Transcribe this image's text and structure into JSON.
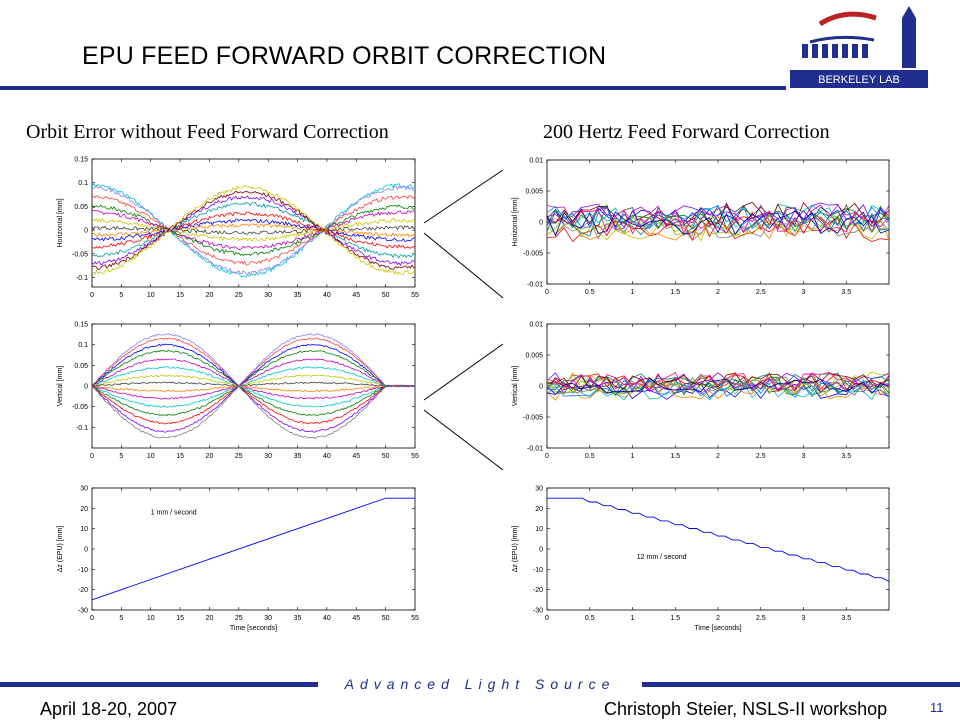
{
  "slide": {
    "title": "EPU FEED FORWARD ORBIT CORRECTION",
    "left_heading": "Orbit Error without Feed Forward Correction",
    "right_heading": "200 Hertz Feed Forward Correction",
    "footer_tagline": "Advanced Light Source",
    "footer_date": "April 18-20, 2007",
    "footer_author": "Christoph Steier, NSLS-II workshop",
    "page_number": "11",
    "logo_text": "BERKELEY LAB",
    "accent_color": "#1f2e8f"
  },
  "chart_data": [
    {
      "id": "left-horizontal",
      "type": "line",
      "xlabel": "",
      "ylabel": "Horizontal [mm]",
      "xlim": [
        0,
        55
      ],
      "ylim": [
        -0.12,
        0.15
      ],
      "xticks": [
        "0",
        "5",
        "10",
        "15",
        "20",
        "25",
        "30",
        "35",
        "40",
        "45",
        "50",
        "55"
      ],
      "yticks": [
        "-0.1",
        "-0.05",
        "0",
        "0.05",
        "0.1",
        "0.15"
      ],
      "shape": "cos_envelope",
      "amplitudes": [
        0.095,
        0.09,
        0.07,
        0.05,
        0.038,
        0.02,
        0.005,
        -0.01,
        -0.02,
        -0.035,
        -0.055,
        -0.07,
        -0.08,
        -0.09
      ],
      "colors": [
        "#00c8c8",
        "#8080ff",
        "#ff4040",
        "#008000",
        "#c000c0",
        "#c8c800",
        "#404040",
        "#ff8000",
        "#0000ff",
        "#ff0000",
        "#00a0a0",
        "#8000ff",
        "#800000",
        "#c8c800"
      ]
    },
    {
      "id": "right-horizontal",
      "type": "line",
      "xlabel": "",
      "ylabel": "Horizontal [mm]",
      "xlim": [
        0,
        4
      ],
      "ylim": [
        -0.01,
        0.01
      ],
      "xticks": [
        "0",
        "0.5",
        "1",
        "1.5",
        "2",
        "2.5",
        "3",
        "3.5"
      ],
      "yticks": [
        "-0.01",
        "-0.005",
        "0",
        "0.005",
        "0.01"
      ],
      "shape": "noise",
      "noise_amplitude": 0.0025,
      "series_count": 16
    },
    {
      "id": "left-vertical",
      "type": "line",
      "xlabel": "",
      "ylabel": "Vertical [mm]",
      "xlim": [
        0,
        55
      ],
      "ylim": [
        -0.15,
        0.15
      ],
      "xticks": [
        "0",
        "5",
        "10",
        "15",
        "20",
        "25",
        "30",
        "35",
        "40",
        "45",
        "50",
        "55"
      ],
      "yticks": [
        "-0.1",
        "-0.05",
        "0",
        "0.05",
        "0.1",
        "0.15"
      ],
      "shape": "sin_lobes",
      "amplitudes": [
        0.125,
        0.115,
        0.1,
        0.085,
        0.065,
        0.045,
        0.025,
        0.008,
        -0.012,
        -0.03,
        -0.05,
        -0.07,
        -0.09,
        -0.11,
        -0.125
      ],
      "colors": [
        "#8080ff",
        "#ff4040",
        "#0000ff",
        "#008000",
        "#c000c0",
        "#00c8c8",
        "#c8c800",
        "#404040",
        "#ff8000",
        "#c000c0",
        "#00c8c8",
        "#008000",
        "#ff0000",
        "#8000ff",
        "#808080"
      ]
    },
    {
      "id": "right-vertical",
      "type": "line",
      "xlabel": "",
      "ylabel": "Vertical [mm]",
      "xlim": [
        0,
        4
      ],
      "ylim": [
        -0.01,
        0.01
      ],
      "xticks": [
        "0",
        "0.5",
        "1",
        "1.5",
        "2",
        "2.5",
        "3",
        "3.5"
      ],
      "yticks": [
        "-0.01",
        "-0.005",
        "0",
        "0.005",
        "0.01"
      ],
      "shape": "noise",
      "noise_amplitude": 0.0018,
      "series_count": 16
    },
    {
      "id": "left-epu",
      "type": "line",
      "xlabel": "Time [seconds]",
      "ylabel": "Δz (EPU) [mm]",
      "xlim": [
        0,
        55
      ],
      "ylim": [
        -30,
        30
      ],
      "xticks": [
        "0",
        "5",
        "10",
        "15",
        "20",
        "25",
        "30",
        "35",
        "40",
        "45",
        "50",
        "55"
      ],
      "yticks": [
        "-30",
        "-20",
        "-10",
        "0",
        "10",
        "20",
        "30"
      ],
      "annotation": "1 mm / second",
      "annotation_at": [
        10,
        17
      ],
      "series": [
        {
          "x": [
            0,
            50,
            55
          ],
          "y": [
            -25,
            25,
            25
          ],
          "color": "#0000ff"
        }
      ]
    },
    {
      "id": "right-epu",
      "type": "line",
      "xlabel": "Time [seconds]",
      "ylabel": "Δz (EPU) [mm]",
      "xlim": [
        0,
        4
      ],
      "ylim": [
        -30,
        30
      ],
      "xticks": [
        "0",
        "0.5",
        "1",
        "1.5",
        "2",
        "2.5",
        "3",
        "3.5"
      ],
      "yticks": [
        "-30",
        "-20",
        "-10",
        "0",
        "10",
        "20",
        "30"
      ],
      "annotation": "12 mm / second",
      "annotation_at": [
        1.05,
        -5
      ],
      "series": [
        {
          "x": [
            0,
            0.33,
            4
          ],
          "y": [
            25,
            25,
            -16
          ],
          "color": "#0000ff",
          "stepped": true
        }
      ]
    }
  ]
}
